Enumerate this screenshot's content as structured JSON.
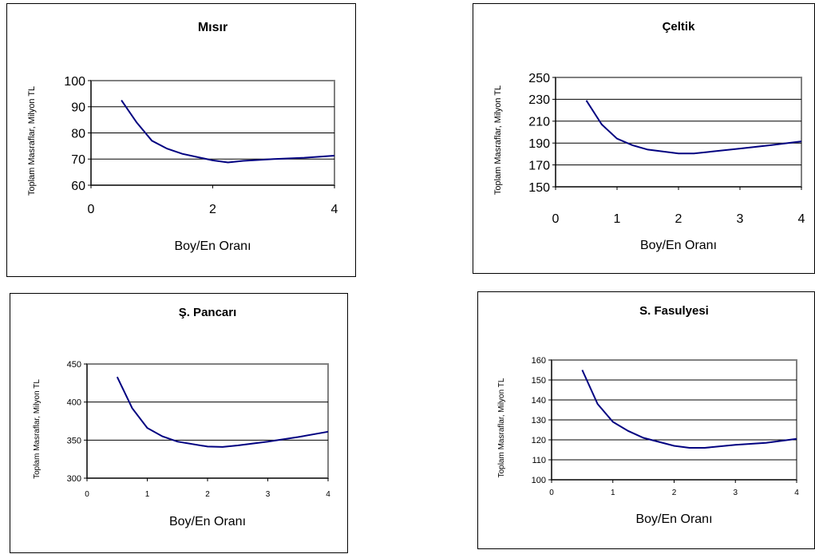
{
  "chart_data": [
    {
      "type": "line",
      "title": "Mısır",
      "xlabel": "Boy/En Oranı",
      "ylabel": "Toplam Masraflar, Milyon TL",
      "xlim": [
        0,
        4
      ],
      "ylim": [
        60,
        100
      ],
      "xticks": [
        "0",
        "2",
        "4"
      ],
      "yticks": [
        "60",
        "70",
        "80",
        "90",
        "100"
      ],
      "grid": true,
      "series": [
        {
          "color": "#000080",
          "x": [
            0.5,
            0.75,
            1,
            1.25,
            1.5,
            2,
            2.25,
            2.5,
            3,
            3.5,
            4
          ],
          "y": [
            92.5,
            84,
            77,
            74,
            72,
            69.5,
            68.7,
            69.3,
            70,
            70.5,
            71.3
          ]
        }
      ]
    },
    {
      "type": "line",
      "title": "Çeltik",
      "xlabel": "Boy/En Oranı",
      "ylabel": "Toplam Masraflar, Milyon TL",
      "xlim": [
        0,
        4
      ],
      "ylim": [
        150,
        250
      ],
      "xticks": [
        "0",
        "1",
        "2",
        "3",
        "4"
      ],
      "yticks": [
        "150",
        "170",
        "190",
        "210",
        "230",
        "250"
      ],
      "grid": true,
      "series": [
        {
          "color": "#000080",
          "x": [
            0.5,
            0.75,
            1,
            1.25,
            1.5,
            2,
            2.25,
            2.5,
            3,
            3.5,
            4
          ],
          "y": [
            229,
            207,
            194,
            188,
            184,
            180.5,
            180.5,
            182,
            185,
            188,
            191.5
          ]
        }
      ]
    },
    {
      "type": "line",
      "title": "Ş. Pancarı",
      "xlabel": "Boy/En Oranı",
      "ylabel": "Toplam Masraflar, Milyon TL",
      "xlim": [
        0,
        4
      ],
      "ylim": [
        300,
        450
      ],
      "xticks": [
        "0",
        "1",
        "2",
        "3",
        "4"
      ],
      "yticks": [
        "300",
        "350",
        "400",
        "450"
      ],
      "grid": true,
      "series": [
        {
          "color": "#000080",
          "x": [
            0.5,
            0.75,
            1,
            1.25,
            1.5,
            2,
            2.25,
            2.5,
            3,
            3.5,
            4
          ],
          "y": [
            433,
            392,
            366,
            355,
            348,
            341.5,
            341,
            343,
            348,
            354,
            361
          ]
        }
      ]
    },
    {
      "type": "line",
      "title": "S. Fasulyesi",
      "xlabel": "Boy/En Oranı",
      "ylabel": "Toplam Masraflar, Milyon TL",
      "xlim": [
        0,
        4
      ],
      "ylim": [
        100,
        160
      ],
      "xticks": [
        "0",
        "1",
        "2",
        "3",
        "4"
      ],
      "yticks": [
        "100",
        "110",
        "120",
        "130",
        "140",
        "150",
        "160"
      ],
      "grid": true,
      "series": [
        {
          "color": "#000080",
          "x": [
            0.5,
            0.75,
            1,
            1.25,
            1.5,
            2,
            2.25,
            2.5,
            3,
            3.5,
            4
          ],
          "y": [
            155,
            138,
            129,
            124.5,
            121,
            117,
            116,
            116,
            117.5,
            118.5,
            120.5
          ]
        }
      ]
    }
  ]
}
